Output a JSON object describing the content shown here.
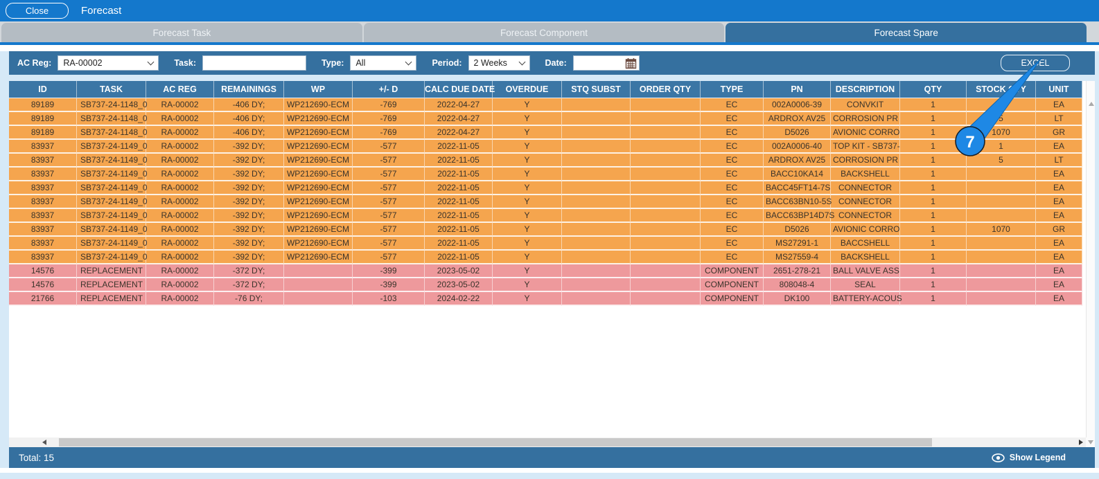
{
  "window": {
    "close_label": "Close",
    "title": "Forecast"
  },
  "tabs": [
    {
      "label": "Forecast Task",
      "active": false
    },
    {
      "label": "Forecast Component",
      "active": false
    },
    {
      "label": "Forecast Spare",
      "active": true
    }
  ],
  "filters": {
    "ac_reg_label": "AC Reg:",
    "ac_reg_value": "RA-00002",
    "task_label": "Task:",
    "task_value": "",
    "type_label": "Type:",
    "type_value": "All",
    "period_label": "Period:",
    "period_value": "2 Weeks",
    "date_label": "Date:",
    "date_value": "",
    "excel_label": "EXCEL"
  },
  "table": {
    "columns": [
      "ID",
      "TASK",
      "AC REG",
      "REMAININGS",
      "WP",
      "+/- D",
      "CALC DUE DATE",
      "OVERDUE",
      "STQ SUBST",
      "ORDER QTY",
      "TYPE",
      "PN",
      "DESCRIPTION",
      "QTY",
      "STOCK QTY",
      "UNIT"
    ],
    "rows": [
      {
        "tone": "orange",
        "cells": [
          "89189",
          "SB737-24-1148_0",
          "RA-00002",
          "-406 DY;",
          "WP212690-ECM",
          "-769",
          "2022-04-27",
          "Y",
          "",
          "",
          "EC",
          "002A0006-39",
          "CONVKIT",
          "1",
          "",
          "EA"
        ]
      },
      {
        "tone": "orange",
        "cells": [
          "89189",
          "SB737-24-1148_0",
          "RA-00002",
          "-406 DY;",
          "WP212690-ECM",
          "-769",
          "2022-04-27",
          "Y",
          "",
          "",
          "EC",
          "ARDROX AV25",
          "CORROSION PR",
          "1",
          "5",
          "LT"
        ]
      },
      {
        "tone": "orange",
        "cells": [
          "89189",
          "SB737-24-1148_0",
          "RA-00002",
          "-406 DY;",
          "WP212690-ECM",
          "-769",
          "2022-04-27",
          "Y",
          "",
          "",
          "EC",
          "D5026",
          "AVIONIC CORRO",
          "1",
          "1070",
          "GR"
        ]
      },
      {
        "tone": "orange",
        "cells": [
          "83937",
          "SB737-24-1149_0",
          "RA-00002",
          "-392 DY;",
          "WP212690-ECM",
          "-577",
          "2022-11-05",
          "Y",
          "",
          "",
          "EC",
          "002A0006-40",
          "TOP KIT - SB737-",
          "1",
          "1",
          "EA"
        ]
      },
      {
        "tone": "orange",
        "cells": [
          "83937",
          "SB737-24-1149_0",
          "RA-00002",
          "-392 DY;",
          "WP212690-ECM",
          "-577",
          "2022-11-05",
          "Y",
          "",
          "",
          "EC",
          "ARDROX AV25",
          "CORROSION PR",
          "1",
          "5",
          "LT"
        ]
      },
      {
        "tone": "orange",
        "cells": [
          "83937",
          "SB737-24-1149_0",
          "RA-00002",
          "-392 DY;",
          "WP212690-ECM",
          "-577",
          "2022-11-05",
          "Y",
          "",
          "",
          "EC",
          "BACC10KA14",
          "BACKSHELL",
          "1",
          "",
          "EA"
        ]
      },
      {
        "tone": "orange",
        "cells": [
          "83937",
          "SB737-24-1149_0",
          "RA-00002",
          "-392 DY;",
          "WP212690-ECM",
          "-577",
          "2022-11-05",
          "Y",
          "",
          "",
          "EC",
          "BACC45FT14-7S",
          "CONNECTOR",
          "1",
          "",
          "EA"
        ]
      },
      {
        "tone": "orange",
        "cells": [
          "83937",
          "SB737-24-1149_0",
          "RA-00002",
          "-392 DY;",
          "WP212690-ECM",
          "-577",
          "2022-11-05",
          "Y",
          "",
          "",
          "EC",
          "BACC63BN10-5S",
          "CONNECTOR",
          "1",
          "",
          "EA"
        ]
      },
      {
        "tone": "orange",
        "cells": [
          "83937",
          "SB737-24-1149_0",
          "RA-00002",
          "-392 DY;",
          "WP212690-ECM",
          "-577",
          "2022-11-05",
          "Y",
          "",
          "",
          "EC",
          "BACC63BP14D7S",
          "CONNECTOR",
          "1",
          "",
          "EA"
        ]
      },
      {
        "tone": "orange",
        "cells": [
          "83937",
          "SB737-24-1149_0",
          "RA-00002",
          "-392 DY;",
          "WP212690-ECM",
          "-577",
          "2022-11-05",
          "Y",
          "",
          "",
          "EC",
          "D5026",
          "AVIONIC CORRO",
          "1",
          "1070",
          "GR"
        ]
      },
      {
        "tone": "orange",
        "cells": [
          "83937",
          "SB737-24-1149_0",
          "RA-00002",
          "-392 DY;",
          "WP212690-ECM",
          "-577",
          "2022-11-05",
          "Y",
          "",
          "",
          "EC",
          "MS27291-1",
          "BACCSHELL",
          "1",
          "",
          "EA"
        ]
      },
      {
        "tone": "orange",
        "cells": [
          "83937",
          "SB737-24-1149_0",
          "RA-00002",
          "-392 DY;",
          "WP212690-ECM",
          "-577",
          "2022-11-05",
          "Y",
          "",
          "",
          "EC",
          "MS27559-4",
          "BACKSHELL",
          "1",
          "",
          "EA"
        ]
      },
      {
        "tone": "pink",
        "cells": [
          "14576",
          "REPLACEMENT",
          "RA-00002",
          "-372 DY;",
          "",
          "-399",
          "2023-05-02",
          "Y",
          "",
          "",
          "COMPONENT",
          "2651-278-21",
          "BALL VALVE ASS",
          "1",
          "",
          "EA"
        ]
      },
      {
        "tone": "pink",
        "cells": [
          "14576",
          "REPLACEMENT",
          "RA-00002",
          "-372 DY;",
          "",
          "-399",
          "2023-05-02",
          "Y",
          "",
          "",
          "COMPONENT",
          "808048-4",
          "SEAL",
          "1",
          "",
          "EA"
        ]
      },
      {
        "tone": "pink",
        "cells": [
          "21766",
          "REPLACEMENT",
          "RA-00002",
          "-76 DY;",
          "",
          "-103",
          "2024-02-22",
          "Y",
          "",
          "",
          "COMPONENT",
          "DK100",
          "BATTERY-ACOUS",
          "1",
          "",
          "EA"
        ]
      }
    ]
  },
  "footer": {
    "total_label": "Total: 15",
    "show_legend_label": "Show Legend"
  },
  "annotation": {
    "number": "7"
  },
  "colors": {
    "titlebar_blue": "#1478cc",
    "bar_blue": "#35709f",
    "header_blue": "#3b76a5",
    "row_orange": "#f5a54e",
    "row_pink": "#ee999c",
    "annotation_blue": "#1e88e5"
  }
}
